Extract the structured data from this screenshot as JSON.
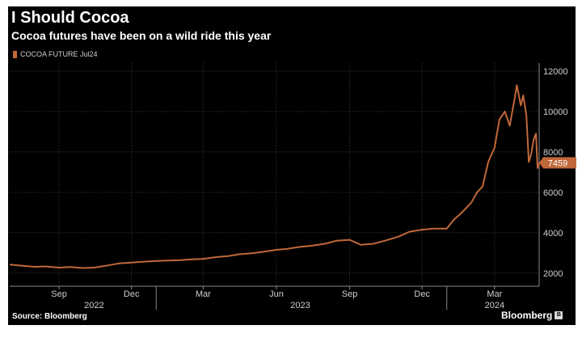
{
  "header": {
    "title": "I Should Cocoa",
    "subtitle": "Cocoa futures have been on a wild ride this year"
  },
  "footer": {
    "source": "Source: Bloomberg",
    "brand": "Bloomberg",
    "brand_icon": "bloomberg-square-logo"
  },
  "colors": {
    "background": "#000000",
    "series": "#c0683a",
    "grid": "#3a3a3a",
    "axis_text": "#cfcfcf"
  },
  "chart_data": {
    "type": "line",
    "title": "I Should Cocoa",
    "subtitle": "Cocoa futures have been on a wild ride this year",
    "xlabel": "",
    "ylabel": "",
    "y_axis_side": "right",
    "legend_position": "top-left",
    "grid": true,
    "xlim": [
      "2022-07-01",
      "2024-04-26"
    ],
    "ylim": [
      1350,
      12400
    ],
    "y_ticks": [
      2000,
      4000,
      6000,
      8000,
      10000,
      12000
    ],
    "y_tick_labels": [
      "2000",
      "4000",
      "6000",
      "8000",
      "10000",
      "12000"
    ],
    "x_ticks": [
      {
        "date": "2022-09-01",
        "label": "Sep"
      },
      {
        "date": "2022-12-01",
        "label": "Dec"
      },
      {
        "date": "2023-03-01",
        "label": "Mar"
      },
      {
        "date": "2023-06-01",
        "label": "Jun"
      },
      {
        "date": "2023-09-01",
        "label": "Sep"
      },
      {
        "date": "2023-12-01",
        "label": "Dec"
      },
      {
        "date": "2024-03-01",
        "label": "Mar"
      }
    ],
    "year_labels": [
      {
        "date": "2022-10-15",
        "label": "2022"
      },
      {
        "date": "2023-07-01",
        "label": "2023"
      },
      {
        "date": "2024-03-01",
        "label": "2024"
      }
    ],
    "year_separators": [
      "2023-01-01",
      "2024-01-01"
    ],
    "last_value_label": "7459",
    "series": [
      {
        "name": "COCOA FUTURE Jul24",
        "x": [
          "2022-07-01",
          "2022-07-15",
          "2022-08-01",
          "2022-08-15",
          "2022-09-01",
          "2022-09-15",
          "2022-10-01",
          "2022-10-15",
          "2022-11-01",
          "2022-11-15",
          "2022-12-01",
          "2022-12-15",
          "2023-01-01",
          "2023-01-15",
          "2023-02-01",
          "2023-02-15",
          "2023-03-01",
          "2023-03-15",
          "2023-04-01",
          "2023-04-15",
          "2023-05-01",
          "2023-05-15",
          "2023-06-01",
          "2023-06-15",
          "2023-07-01",
          "2023-07-15",
          "2023-08-01",
          "2023-08-15",
          "2023-09-01",
          "2023-09-15",
          "2023-10-01",
          "2023-10-15",
          "2023-11-01",
          "2023-11-15",
          "2023-12-01",
          "2023-12-15",
          "2024-01-01",
          "2024-01-10",
          "2024-01-20",
          "2024-02-01",
          "2024-02-08",
          "2024-02-15",
          "2024-02-22",
          "2024-03-01",
          "2024-03-07",
          "2024-03-14",
          "2024-03-20",
          "2024-03-26",
          "2024-03-29",
          "2024-04-03",
          "2024-04-06",
          "2024-04-10",
          "2024-04-13",
          "2024-04-16",
          "2024-04-19",
          "2024-04-22",
          "2024-04-24",
          "2024-04-26"
        ],
        "values": [
          2420,
          2370,
          2310,
          2330,
          2270,
          2300,
          2250,
          2270,
          2380,
          2480,
          2520,
          2560,
          2600,
          2620,
          2640,
          2680,
          2700,
          2780,
          2840,
          2930,
          2980,
          3050,
          3150,
          3200,
          3300,
          3350,
          3450,
          3600,
          3650,
          3400,
          3450,
          3600,
          3800,
          4050,
          4150,
          4200,
          4200,
          4650,
          5000,
          5500,
          6000,
          6300,
          7500,
          8200,
          9600,
          10000,
          9300,
          10600,
          11300,
          10300,
          10800,
          9800,
          7500,
          7900,
          8600,
          8900,
          7200,
          7459
        ]
      }
    ]
  }
}
